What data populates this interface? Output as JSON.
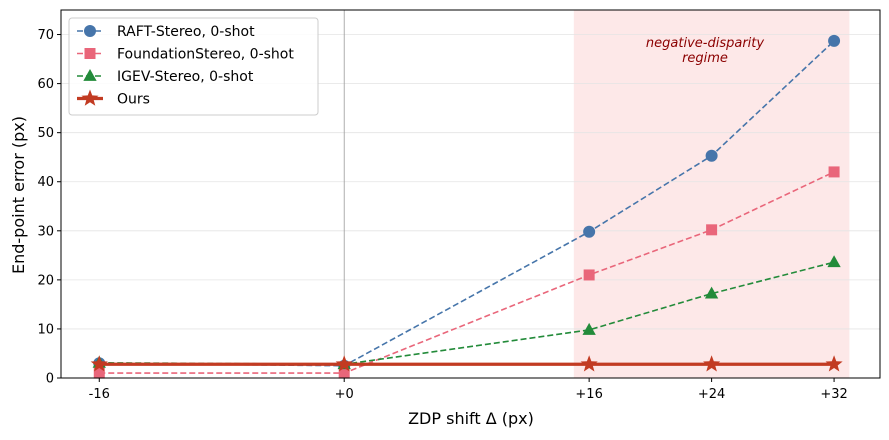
{
  "chart_data": {
    "type": "line",
    "title": "",
    "xlabel": "ZDP shift Δ (px)",
    "ylabel": "End-point error (px)",
    "x": [
      -16,
      0,
      16,
      24,
      32
    ],
    "x_tick_labels": [
      "-16",
      "+0",
      "+16",
      "+24",
      "+32"
    ],
    "xlim": [
      -18.5,
      35
    ],
    "ylim": [
      0,
      75
    ],
    "y_ticks": [
      0,
      10,
      20,
      30,
      40,
      50,
      60,
      70
    ],
    "grid": "horizontal",
    "legend_position": "top-left",
    "vertical_reference_line": 0,
    "shaded_region": {
      "x_range": [
        15,
        33
      ],
      "color": "#fde8e8",
      "label_lines": [
        "negative-disparity",
        "regime"
      ],
      "label_color": "#8b0000"
    },
    "series": [
      {
        "name": "RAFT-Stereo, 0-shot",
        "values": [
          3.0,
          2.5,
          29.8,
          45.3,
          68.7
        ],
        "color": "#4675aa",
        "marker": "circle",
        "linestyle": "dashed"
      },
      {
        "name": "FoundationStereo, 0-shot",
        "values": [
          1.0,
          1.0,
          21.0,
          30.2,
          42.0
        ],
        "color": "#e9667a",
        "marker": "square",
        "linestyle": "dashed"
      },
      {
        "name": "IGEV-Stereo, 0-shot",
        "values": [
          3.1,
          2.8,
          9.8,
          17.2,
          23.6
        ],
        "color": "#238b3a",
        "marker": "triangle",
        "linestyle": "dashed"
      },
      {
        "name": "Ours",
        "values": [
          2.8,
          2.8,
          2.8,
          2.8,
          2.8
        ],
        "color": "#c23b22",
        "marker": "star",
        "linestyle": "solid"
      }
    ]
  }
}
